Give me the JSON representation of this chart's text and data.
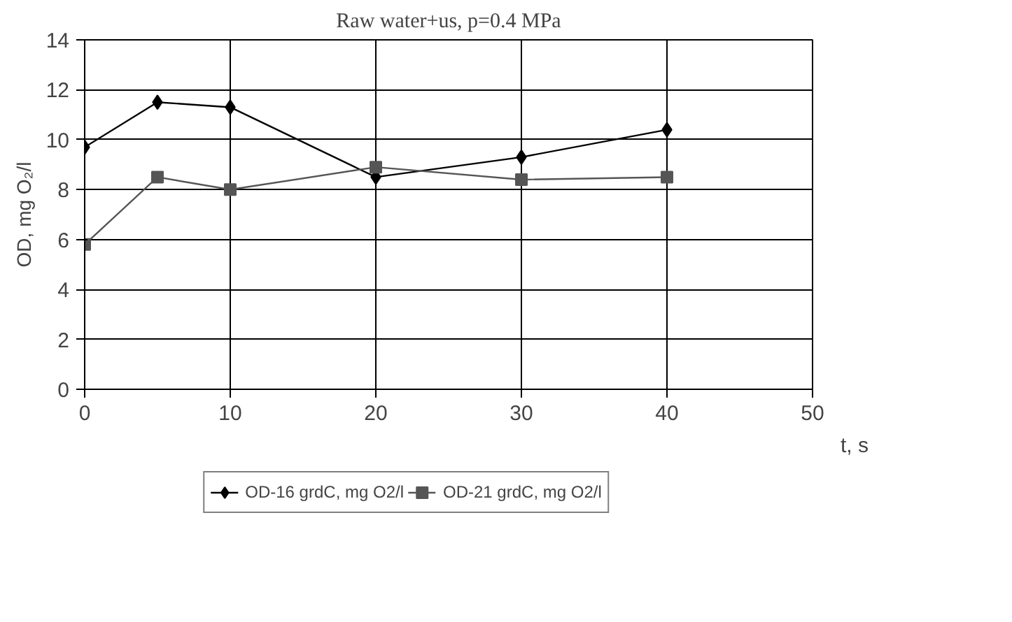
{
  "chart_data": {
    "type": "line",
    "title": "Raw water+us, p=0.4 MPa",
    "xlabel": "t, s",
    "ylabel": "OD, mg O₂/l",
    "x": [
      0,
      5,
      10,
      20,
      30,
      40
    ],
    "series": [
      {
        "name": "OD-16 grdC, mg O2/l",
        "color": "#000000",
        "marker": "diamond",
        "values": [
          9.7,
          11.5,
          11.3,
          8.5,
          9.3,
          10.4
        ]
      },
      {
        "name": "OD-21 grdC, mg O2/l",
        "color": "#555555",
        "marker": "square",
        "values": [
          5.8,
          8.5,
          8.0,
          8.9,
          8.4,
          8.5
        ]
      }
    ],
    "xlim": [
      0,
      50
    ],
    "xticks": [
      0,
      10,
      20,
      30,
      40,
      50
    ],
    "ylim": [
      0,
      14
    ],
    "yticks": [
      0,
      2,
      4,
      6,
      8,
      10,
      12,
      14
    ],
    "grid": true,
    "legend": "bottom",
    "line_style": "solid"
  }
}
